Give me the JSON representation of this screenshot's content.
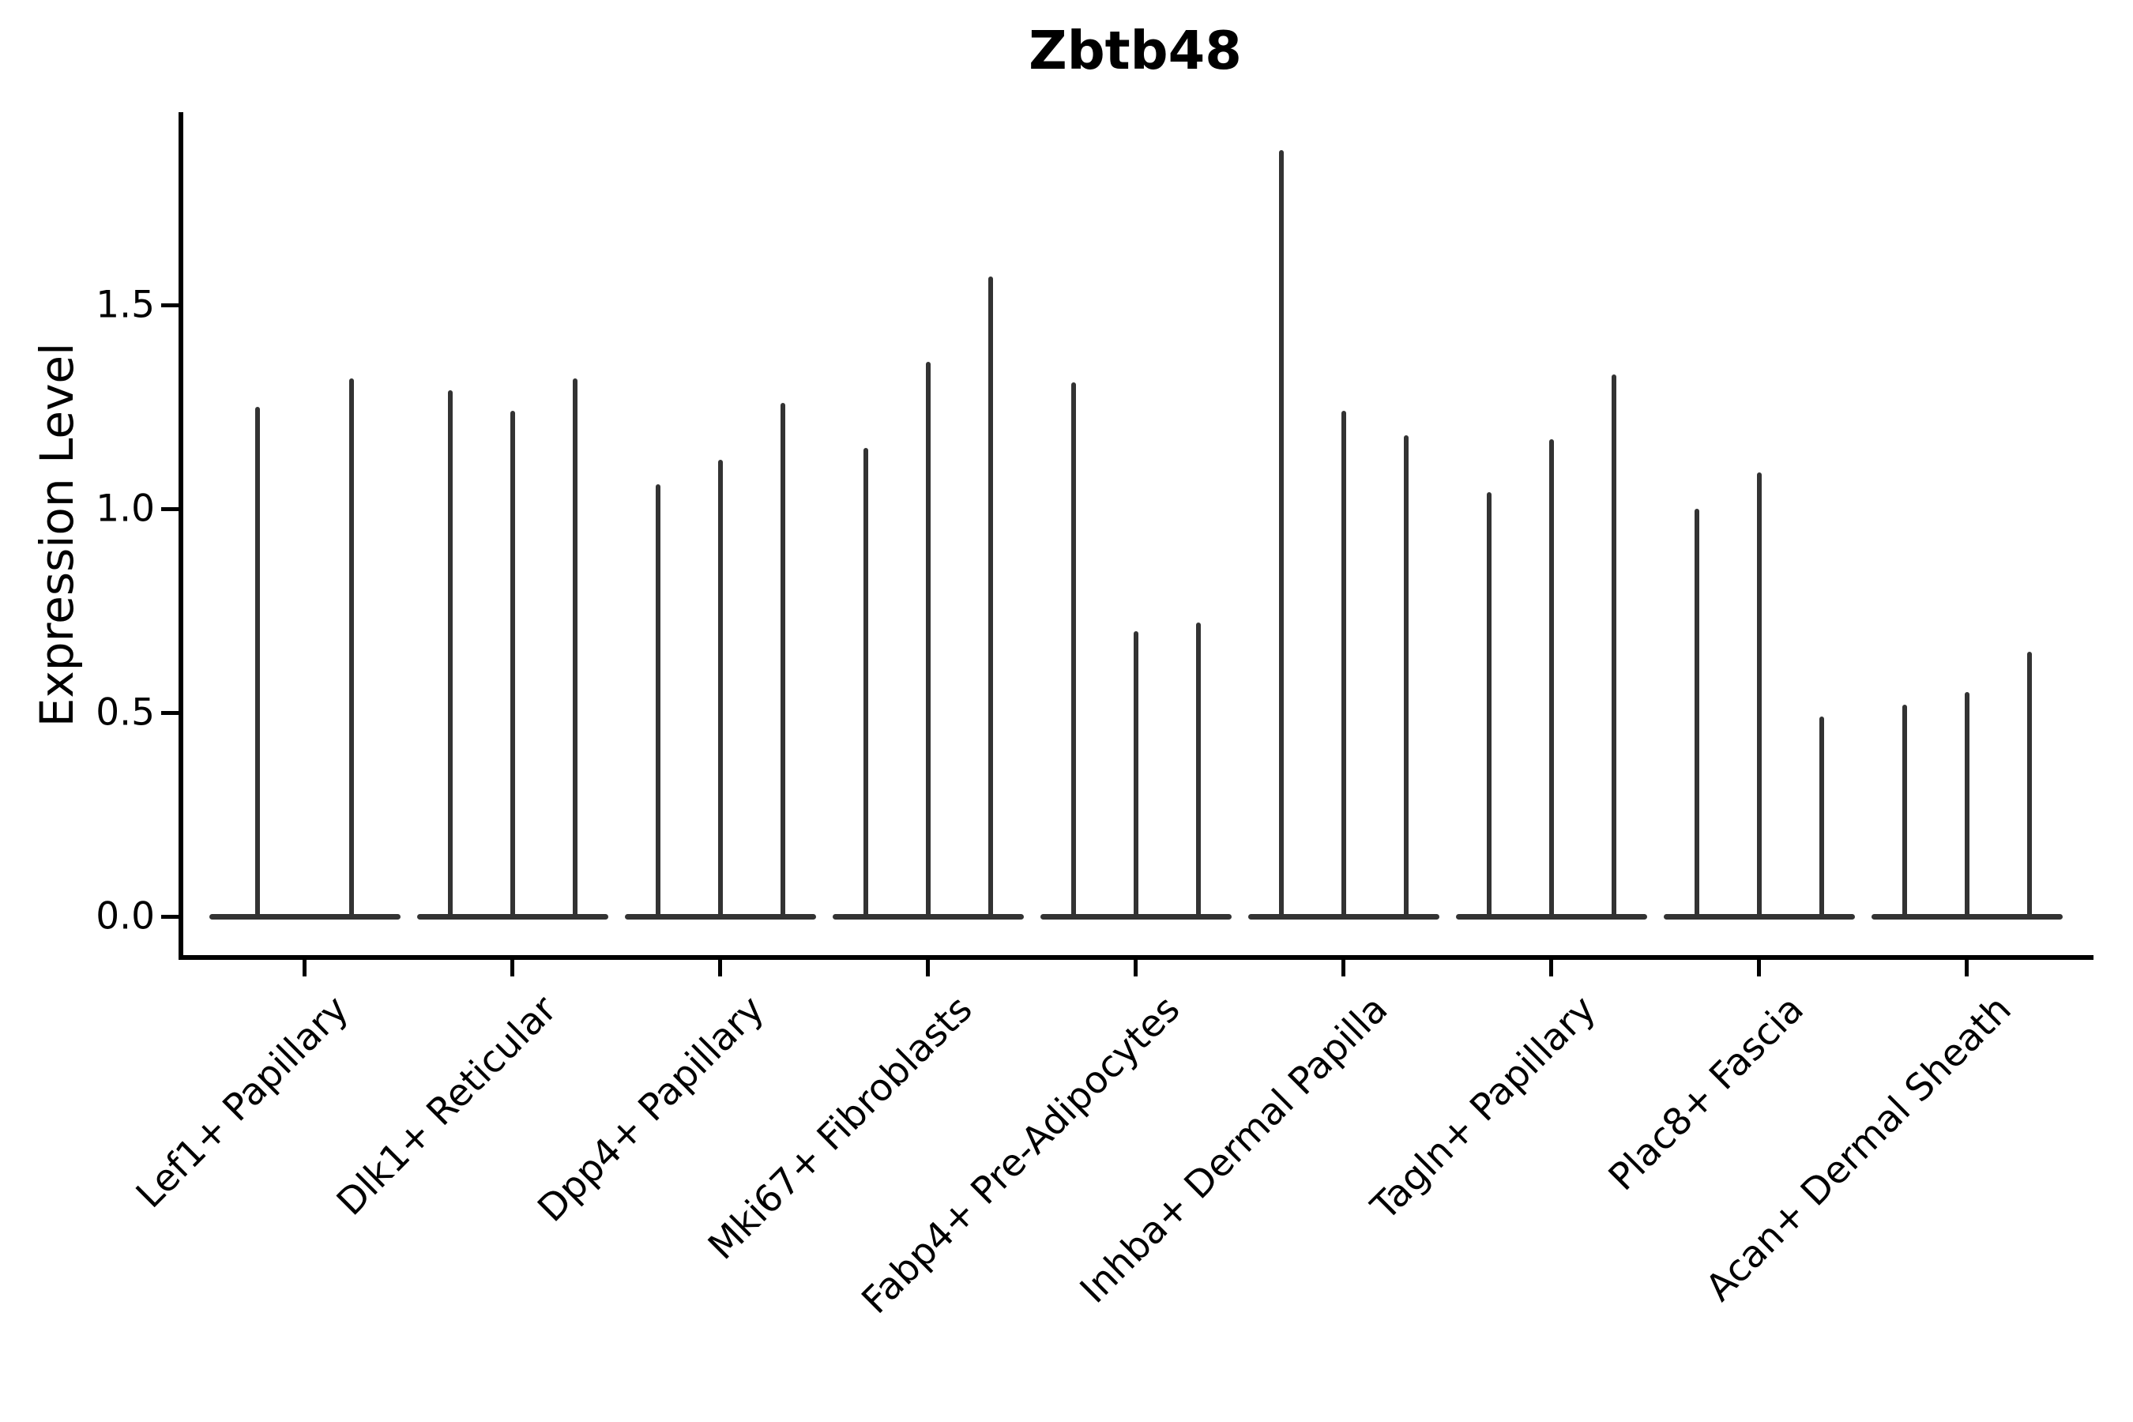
{
  "title": "Zbtb48",
  "y_axis_label": "Expression Level",
  "colors": {
    "background": "#ffffff",
    "violin": "#333333",
    "axis": "#000000",
    "text": "#000000"
  },
  "chart_data": {
    "type": "violin",
    "title": "Zbtb48",
    "xlabel": "",
    "ylabel": "Expression Level",
    "ylim": [
      -0.1,
      1.97
    ],
    "yticks": [
      {
        "value": 0.0,
        "label": "0.0"
      },
      {
        "value": 0.5,
        "label": "0.5"
      },
      {
        "value": 1.0,
        "label": "1.0"
      },
      {
        "value": 1.5,
        "label": "1.5"
      }
    ],
    "grid": false,
    "legend": null,
    "x_tick_rotation_deg": 45,
    "categories": [
      "Lef1+ Papillary",
      "Dlk1+ Reticular",
      "Dpp4+ Papillary",
      "Mki67+ Fibroblasts",
      "Fabp4+ Pre-Adipocytes",
      "Inhba+ Dermal Papilla",
      "Tagln+ Papillary",
      "Plac8+ Fascia",
      "Acan+ Dermal Sheath"
    ],
    "description": "Each category shows thin needle violins: bulk of density flat at 0 with a narrow tail up to the max expression value per violin.",
    "violins": [
      {
        "category": "Lef1+ Papillary",
        "max_values": [
          1.25,
          1.32
        ]
      },
      {
        "category": "Dlk1+ Reticular",
        "max_values": [
          1.29,
          1.24,
          1.32
        ]
      },
      {
        "category": "Dpp4+ Papillary",
        "max_values": [
          1.06,
          1.12,
          1.26
        ]
      },
      {
        "category": "Mki67+ Fibroblasts",
        "max_values": [
          1.15,
          1.36,
          1.57
        ]
      },
      {
        "category": "Fabp4+ Pre-Adipocytes",
        "max_values": [
          1.31,
          0.7,
          0.72
        ]
      },
      {
        "category": "Inhba+ Dermal Papilla",
        "max_values": [
          1.88,
          1.24,
          1.18
        ]
      },
      {
        "category": "Tagln+ Papillary",
        "max_values": [
          1.04,
          1.17,
          1.33
        ]
      },
      {
        "category": "Plac8+ Fascia",
        "max_values": [
          1.0,
          1.09,
          0.49
        ]
      },
      {
        "category": "Acan+ Dermal Sheath",
        "max_values": [
          0.52,
          0.55,
          0.65
        ]
      }
    ]
  }
}
